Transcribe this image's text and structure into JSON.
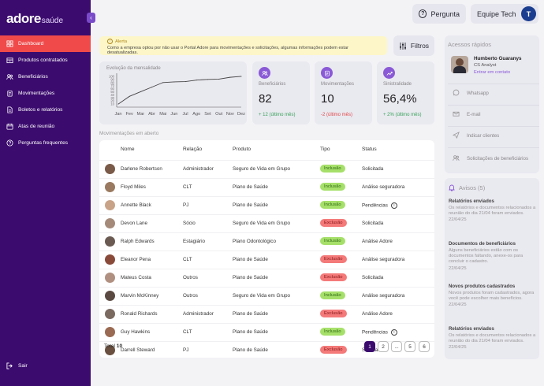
{
  "brand": {
    "name": "adore",
    "sub": "saúde"
  },
  "sidebar": {
    "items": [
      {
        "label": "Dashboard",
        "icon": "grid-icon",
        "active": true
      },
      {
        "label": "Produtos contratados",
        "icon": "box-icon"
      },
      {
        "label": "Beneficiários",
        "icon": "users-icon"
      },
      {
        "label": "Movimentações",
        "icon": "clipboard-icon"
      },
      {
        "label": "Boletos e relatórios",
        "icon": "document-icon"
      },
      {
        "label": "Atas de reunião",
        "icon": "calendar-icon"
      },
      {
        "label": "Perguntas frequentes",
        "icon": "question-icon"
      }
    ],
    "logout": "Sair"
  },
  "topbar": {
    "help": "Pergunta",
    "team": "Equipe Tech",
    "team_initial": "T"
  },
  "alert": {
    "title": "Alerta",
    "text": "Como a empresa optou por não usar o Portal Adore para movimentações e solicitações, algumas informações podem estar desatualizadas."
  },
  "filter_label": "Filtros",
  "chart_data": {
    "type": "line",
    "title": "Evolução da mensalidade",
    "categories": [
      "Jan",
      "Fev",
      "Mar",
      "Abr",
      "Mai",
      "Jun",
      "Jul",
      "Ago",
      "Set",
      "Out",
      "Nov",
      "Dez"
    ],
    "values": [
      10,
      35,
      50,
      65,
      80,
      82,
      83,
      88,
      90,
      91,
      97,
      100
    ],
    "yticks": [
      "100",
      "90",
      "80",
      "70",
      "60",
      "50",
      "40",
      "30",
      "20",
      "10"
    ],
    "ylim": [
      0,
      105
    ]
  },
  "stats": [
    {
      "label": "Beneficiários",
      "value": "82",
      "delta": "+ 12 (último mês)",
      "trend": "up",
      "icon": "users-icon"
    },
    {
      "label": "Movimentações",
      "value": "10",
      "delta": "-2 (último mês)",
      "trend": "down",
      "icon": "clipboard-icon"
    },
    {
      "label": "Sinistralidade",
      "value": "56,4%",
      "delta": "+ 2% (último mês)",
      "trend": "up",
      "icon": "trend-icon"
    }
  ],
  "table": {
    "title": "Movimentações em aberto",
    "columns": [
      "Nome",
      "Relação",
      "Produto",
      "Tipo",
      "Status"
    ],
    "rows": [
      {
        "name": "Darlene Robertson",
        "relation": "Administrador",
        "product": "Seguro de Vida em Grupo",
        "type": "Inclusão",
        "kind": "inc",
        "status": "Solicitada",
        "info": false,
        "ava": "#7a5a48"
      },
      {
        "name": "Floyd Miles",
        "relation": "CLT",
        "product": "Plano de Saúde",
        "type": "Inclusão",
        "kind": "inc",
        "status": "Análise seguradora",
        "info": false,
        "ava": "#9a7a60"
      },
      {
        "name": "Annette Black",
        "relation": "PJ",
        "product": "Plano de Saúde",
        "type": "Inclusão",
        "kind": "inc",
        "status": "Pendências",
        "info": true,
        "ava": "#c9a388"
      },
      {
        "name": "Devon Lane",
        "relation": "Sócio",
        "product": "Seguro de Vida em Grupo",
        "type": "Exclusão",
        "kind": "exc",
        "status": "Solicitada",
        "info": false,
        "ava": "#a58a7a"
      },
      {
        "name": "Ralph Edwards",
        "relation": "Estagiário",
        "product": "Plano Odontológico",
        "type": "Inclusão",
        "kind": "inc",
        "status": "Análise Adore",
        "info": false,
        "ava": "#6a5a52"
      },
      {
        "name": "Eleanor Pena",
        "relation": "CLT",
        "product": "Plano de Saúde",
        "type": "Exclusão",
        "kind": "exc",
        "status": "Análise seguradora",
        "info": false,
        "ava": "#8a4a3a"
      },
      {
        "name": "Mateus Costa",
        "relation": "Outros",
        "product": "Plano de Saúde",
        "type": "Exclusão",
        "kind": "exc",
        "status": "Solicitada",
        "info": false,
        "ava": "#b09080"
      },
      {
        "name": "Marvin McKinney",
        "relation": "Outros",
        "product": "Seguro de Vida em Grupo",
        "type": "Inclusão",
        "kind": "inc",
        "status": "Análise seguradora",
        "info": false,
        "ava": "#5a4a42"
      },
      {
        "name": "Ronald Richards",
        "relation": "Administrador",
        "product": "Plano de Saúde",
        "type": "Exclusão",
        "kind": "exc",
        "status": "Análise Adore",
        "info": false,
        "ava": "#7a6a60"
      },
      {
        "name": "Guy Hawkins",
        "relation": "CLT",
        "product": "Plano de Saúde",
        "type": "Inclusão",
        "kind": "inc",
        "status": "Pendências",
        "info": true,
        "ava": "#9a6a52"
      },
      {
        "name": "Darrell Steward",
        "relation": "PJ",
        "product": "Plano de Saúde",
        "type": "Exclusão",
        "kind": "exc",
        "status": "Solicitada",
        "info": false,
        "ava": "#6a5040"
      }
    ],
    "total_label": "Total",
    "total_value": "10",
    "pages": [
      "1",
      "2",
      "...",
      "5",
      "6"
    ]
  },
  "quick_access": {
    "title": "Acessos rápidos",
    "contact": {
      "name": "Humberto Guaranys",
      "role": "CS Analyst",
      "link": "Entrar em contato"
    },
    "items": [
      {
        "label": "Whatsapp",
        "icon": "whatsapp-icon"
      },
      {
        "label": "E-mail",
        "icon": "mail-icon"
      },
      {
        "label": "Indicar clientes",
        "icon": "send-icon"
      },
      {
        "label": "Solicitações de beneficiários",
        "icon": "users-icon"
      }
    ]
  },
  "notices": {
    "title": "Avisos (5)",
    "items": [
      {
        "title": "Relatórios enviados",
        "text": "Os relatórios e documentos relacionados a reunião do dia 21/04 foram enviados.",
        "date": "22/04/25"
      },
      {
        "title": "Documentos de beneficiários",
        "text": "Alguns beneficiários estão com os documentos faltando, anexe-os para concluir o cadastro.",
        "date": "22/04/25"
      },
      {
        "title": "Novos produtos cadastrados",
        "text": "Novos produtos foram cadastrados, agora você pode escolher mais benefícios.",
        "date": "22/04/25"
      },
      {
        "title": "Relatórios enviados",
        "text": "Os relatórios e documentos relacionados a reunião do dia 21/04 foram enviados.",
        "date": "22/04/25"
      }
    ]
  },
  "colors": {
    "sidebar": "#3b0b6e",
    "active": "#f04a4a",
    "accent": "#8a5ad6"
  }
}
